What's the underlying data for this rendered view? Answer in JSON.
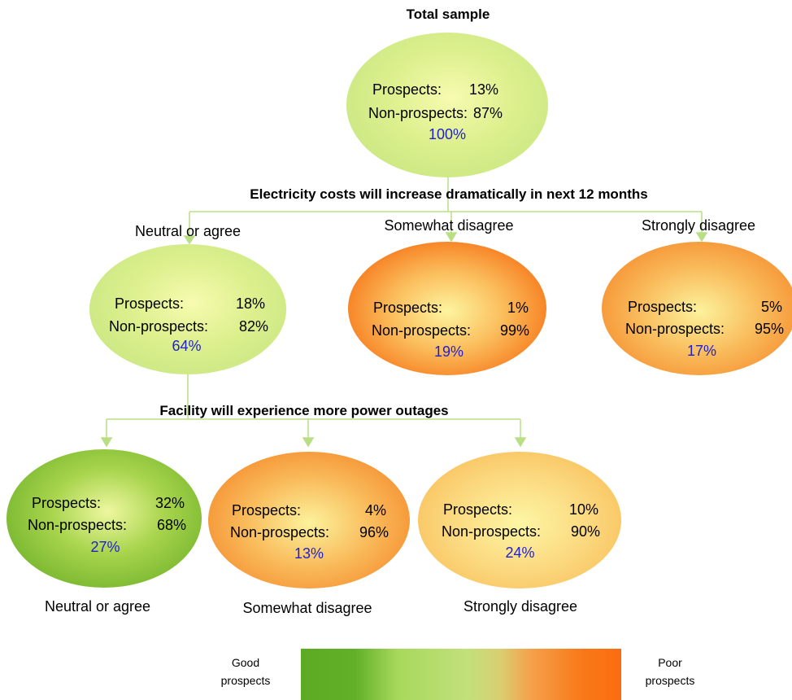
{
  "headings": {
    "total": "Total sample",
    "split1": "Electricity costs will increase dramatically in next 12 months",
    "split2": "Facility will experience more power outages"
  },
  "labels": {
    "prospects": "Prospects:",
    "non_prospects": "Non-prospects:"
  },
  "nodes": {
    "root": {
      "prospects": "13%",
      "non_prospects": "87%",
      "share": "100%"
    },
    "n1": {
      "label": "Neutral or agree",
      "prospects": "18%",
      "non_prospects": "82%",
      "share": "64%"
    },
    "n2": {
      "label": "Somewhat disagree",
      "prospects": "1%",
      "non_prospects": "99%",
      "share": "19%"
    },
    "n3": {
      "label": "Strongly disagree",
      "prospects": "5%",
      "non_prospects": "95%",
      "share": "17%"
    },
    "n4": {
      "label": "Neutral or agree",
      "prospects": "32%",
      "non_prospects": "68%",
      "share": "27%"
    },
    "n5": {
      "label": "Somewhat disagree",
      "prospects": "4%",
      "non_prospects": "96%",
      "share": "13%"
    },
    "n6": {
      "label": "Strongly disagree",
      "prospects": "10%",
      "non_prospects": "90%",
      "share": "24%"
    }
  },
  "legend": {
    "good_line1": "Good",
    "good_line2": "prospects",
    "poor_line1": "Poor",
    "poor_line2": "prospects"
  },
  "colors": {
    "connector": "#b9df85",
    "share_text": "#1f1fd0",
    "good": "#5cab22",
    "poor": "#fa6c10"
  }
}
